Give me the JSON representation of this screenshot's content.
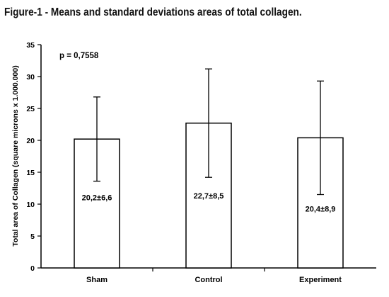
{
  "figure": {
    "title": "Figure-1 - Means and standard deviations areas of total collagen."
  },
  "chart_data": {
    "type": "bar",
    "title": "",
    "categories": [
      "Sham",
      "Control",
      "Experiment"
    ],
    "values": [
      20.2,
      22.7,
      20.4
    ],
    "error": [
      6.6,
      8.5,
      8.9
    ],
    "value_labels": [
      "20,2±6,6",
      "22,7±8,5",
      "20,4±8,9"
    ],
    "xlabel": "",
    "ylabel": "Total area of Collagen (square microns x 1.000.000)",
    "ylim": [
      0,
      35
    ],
    "yticks": [
      0,
      5,
      10,
      15,
      20,
      25,
      30,
      35
    ],
    "annotation": "p = 0,7558",
    "grid": false,
    "legend": "none",
    "colors": {
      "bar_fill": "#ffffff",
      "bar_stroke": "#000000",
      "error_bar": "#000000"
    }
  }
}
